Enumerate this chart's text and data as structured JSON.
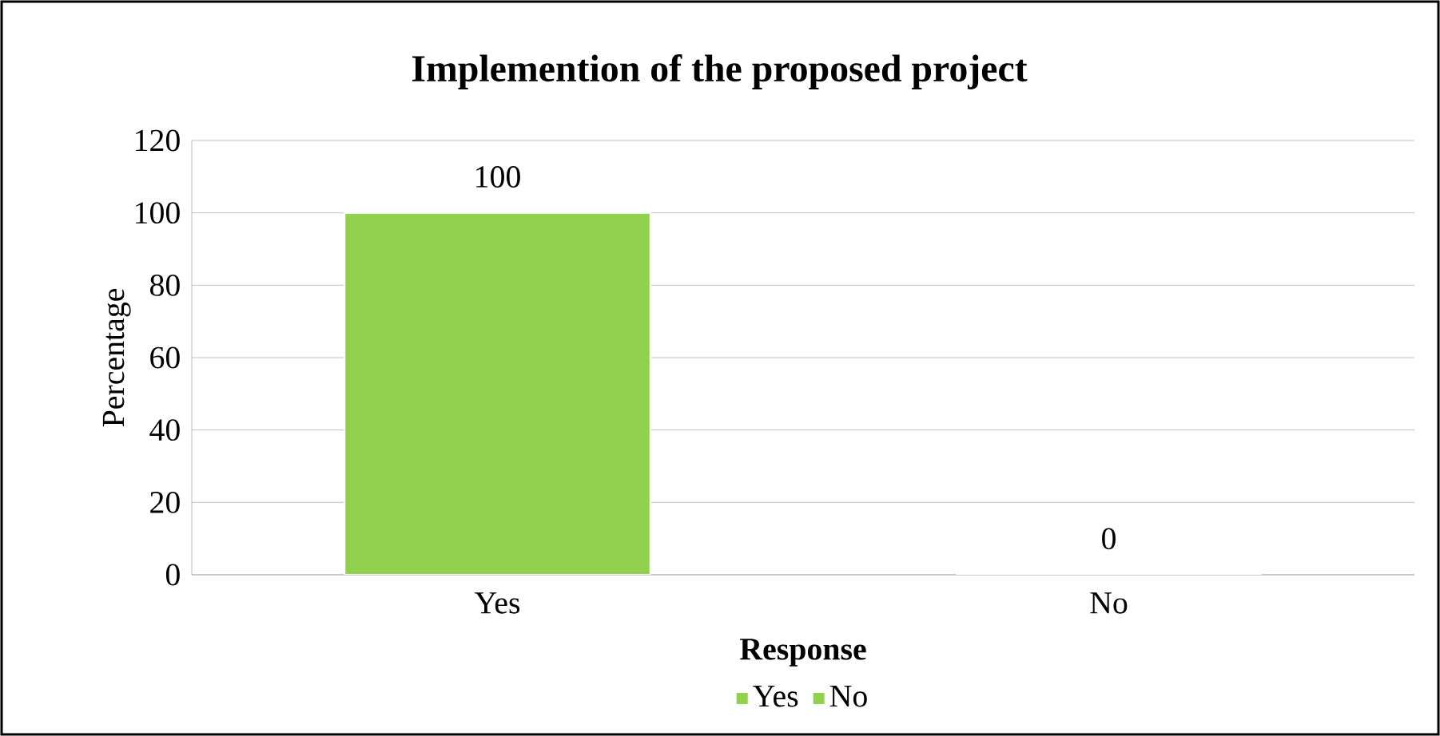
{
  "chart_data": {
    "type": "bar",
    "title": "Implemention of the proposed project",
    "xlabel": "Response",
    "ylabel": "Percentage",
    "categories": [
      "Yes",
      "No"
    ],
    "series": [
      {
        "name": "Yes",
        "color": "#92d050",
        "values": [
          100,
          null
        ]
      },
      {
        "name": "No",
        "color": "#92d050",
        "values": [
          null,
          0
        ]
      }
    ],
    "stacked": true,
    "ylim": [
      0,
      120
    ],
    "yticks": [
      0,
      20,
      40,
      60,
      80,
      100,
      120
    ],
    "grid": "y",
    "legend": "bottom",
    "data_labels": true
  }
}
